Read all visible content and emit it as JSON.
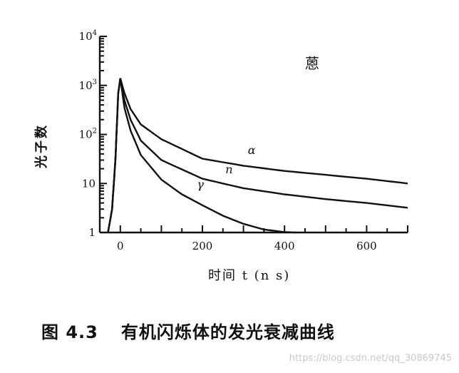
{
  "chart_data": {
    "type": "line",
    "title": "蒽",
    "xlabel": "时间 t (n s)",
    "ylabel": "光子数",
    "x_ticks": [
      0,
      200,
      400,
      600
    ],
    "y_ticks": [
      {
        "value": 1,
        "label": "1"
      },
      {
        "value": 10,
        "label": "10"
      },
      {
        "value": 100,
        "label": "10",
        "exp": "2"
      },
      {
        "value": 1000,
        "label": "10",
        "exp": "3"
      },
      {
        "value": 10000,
        "label": "10",
        "exp": "4"
      }
    ],
    "xlim": [
      -50,
      700
    ],
    "ylim": [
      1,
      10000
    ],
    "yscale": "log",
    "grid": false,
    "series": [
      {
        "name": "α",
        "x": [
          -30,
          -20,
          -12,
          -5,
          0,
          10,
          25,
          50,
          100,
          200,
          300,
          400,
          500,
          600,
          700
        ],
        "y": [
          1,
          3,
          30,
          700,
          1400,
          700,
          330,
          160,
          80,
          32,
          23,
          18,
          15,
          12.5,
          10
        ]
      },
      {
        "name": "n",
        "x": [
          -30,
          -20,
          -12,
          -5,
          0,
          10,
          25,
          50,
          100,
          200,
          300,
          400,
          500,
          600,
          700
        ],
        "y": [
          1,
          3,
          30,
          700,
          1400,
          500,
          200,
          75,
          30,
          12.5,
          8,
          6,
          4.8,
          4,
          3.2
        ]
      },
      {
        "name": "γ",
        "x": [
          -30,
          -20,
          -12,
          -5,
          0,
          10,
          25,
          50,
          100,
          150,
          200,
          250,
          300,
          350,
          400,
          430
        ],
        "y": [
          1,
          3,
          30,
          700,
          1400,
          350,
          120,
          38,
          12,
          6,
          3.6,
          2.2,
          1.5,
          1.15,
          1.02,
          1
        ]
      }
    ]
  },
  "caption": {
    "number": "图 4.3",
    "text": "有机闪烁体的发光衰减曲线"
  },
  "watermark": "https://blog.csdn.net/qq_30869745"
}
